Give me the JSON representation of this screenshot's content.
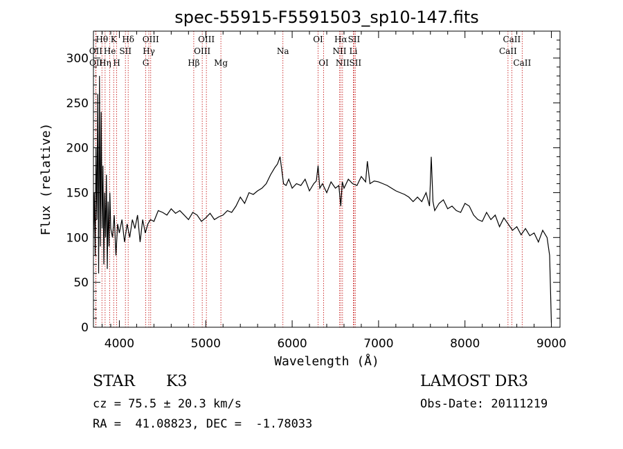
{
  "chart_data": {
    "type": "line",
    "title": "spec-55915-F5591503_sp10-147.fits",
    "xlabel": "Wavelength (Å)",
    "ylabel": "Flux (relative)",
    "xlim": [
      3700,
      9100
    ],
    "ylim": [
      0,
      330
    ],
    "xticks": [
      4000,
      5000,
      6000,
      7000,
      8000,
      9000
    ],
    "yticks": [
      0,
      50,
      100,
      150,
      200,
      250,
      300
    ],
    "series": [
      {
        "name": "flux",
        "x": [
          3700,
          3710,
          3720,
          3730,
          3740,
          3750,
          3760,
          3770,
          3780,
          3790,
          3800,
          3810,
          3820,
          3830,
          3840,
          3850,
          3860,
          3870,
          3880,
          3890,
          3900,
          3920,
          3940,
          3960,
          3980,
          4000,
          4030,
          4060,
          4090,
          4120,
          4150,
          4180,
          4210,
          4240,
          4270,
          4300,
          4330,
          4360,
          4400,
          4450,
          4500,
          4550,
          4600,
          4650,
          4700,
          4750,
          4800,
          4850,
          4900,
          4950,
          5000,
          5050,
          5100,
          5150,
          5200,
          5250,
          5300,
          5350,
          5400,
          5450,
          5500,
          5550,
          5600,
          5650,
          5700,
          5750,
          5800,
          5830,
          5860,
          5880,
          5900,
          5930,
          5960,
          6000,
          6050,
          6100,
          6150,
          6200,
          6250,
          6280,
          6300,
          6320,
          6350,
          6400,
          6450,
          6500,
          6540,
          6563,
          6580,
          6600,
          6650,
          6700,
          6750,
          6800,
          6850,
          6870,
          6900,
          6950,
          7000,
          7050,
          7100,
          7150,
          7200,
          7250,
          7300,
          7350,
          7400,
          7450,
          7500,
          7550,
          7590,
          7610,
          7630,
          7650,
          7700,
          7750,
          7800,
          7850,
          7900,
          7950,
          8000,
          8050,
          8100,
          8150,
          8200,
          8250,
          8300,
          8350,
          8400,
          8450,
          8500,
          8550,
          8600,
          8650,
          8700,
          8750,
          8800,
          8850,
          8900,
          8950,
          8980,
          9000
        ],
        "values": [
          100,
          150,
          80,
          200,
          120,
          260,
          60,
          280,
          90,
          240,
          110,
          180,
          70,
          150,
          100,
          170,
          65,
          140,
          90,
          150,
          110,
          100,
          125,
          80,
          115,
          105,
          120,
          95,
          115,
          100,
          120,
          110,
          125,
          95,
          120,
          105,
          115,
          120,
          118,
          130,
          128,
          125,
          132,
          127,
          130,
          125,
          120,
          128,
          125,
          118,
          122,
          127,
          120,
          123,
          125,
          130,
          128,
          135,
          145,
          138,
          150,
          148,
          152,
          155,
          160,
          170,
          178,
          182,
          190,
          175,
          160,
          158,
          165,
          155,
          160,
          158,
          165,
          152,
          160,
          163,
          180,
          155,
          160,
          150,
          162,
          155,
          158,
          135,
          162,
          155,
          165,
          160,
          158,
          168,
          162,
          185,
          160,
          163,
          162,
          160,
          158,
          155,
          152,
          150,
          148,
          145,
          140,
          145,
          140,
          150,
          135,
          190,
          140,
          130,
          138,
          142,
          132,
          135,
          130,
          128,
          138,
          135,
          125,
          120,
          118,
          128,
          120,
          125,
          112,
          122,
          115,
          108,
          112,
          103,
          110,
          102,
          105,
          95,
          108,
          100,
          80,
          5
        ]
      }
    ],
    "lines": [
      {
        "label": "Hθ",
        "wl": 3798,
        "row": 0
      },
      {
        "label": "OII",
        "wl": 3727,
        "row": 1
      },
      {
        "label": "OII",
        "wl": 3729,
        "row": 2
      },
      {
        "label": "K",
        "wl": 3934,
        "row": 0
      },
      {
        "label": "He",
        "wl": 3889,
        "row": 1
      },
      {
        "label": "Hη",
        "wl": 3835,
        "row": 2
      },
      {
        "label": "H",
        "wl": 3969,
        "row": 2
      },
      {
        "label": "SII",
        "wl": 4070,
        "row": 1
      },
      {
        "label": "Hδ",
        "wl": 4102,
        "row": 0
      },
      {
        "label": "OIII",
        "wl": 4363,
        "row": 0
      },
      {
        "label": "Hγ",
        "wl": 4341,
        "row": 1
      },
      {
        "label": "G",
        "wl": 4305,
        "row": 2
      },
      {
        "label": "Hβ",
        "wl": 4861,
        "row": 2
      },
      {
        "label": "OIII",
        "wl": 5007,
        "row": 0
      },
      {
        "label": "OIII",
        "wl": 4959,
        "row": 1
      },
      {
        "label": "Mg",
        "wl": 5175,
        "row": 2
      },
      {
        "label": "Na",
        "wl": 5893,
        "row": 1
      },
      {
        "label": "OI",
        "wl": 6300,
        "row": 0
      },
      {
        "label": "OI",
        "wl": 6364,
        "row": 2
      },
      {
        "label": "Hα",
        "wl": 6563,
        "row": 0
      },
      {
        "label": "NII",
        "wl": 6548,
        "row": 1
      },
      {
        "label": "NII",
        "wl": 6583,
        "row": 2
      },
      {
        "label": "SII",
        "wl": 6716,
        "row": 0
      },
      {
        "label": "Li",
        "wl": 6708,
        "row": 1
      },
      {
        "label": "SII",
        "wl": 6731,
        "row": 2
      },
      {
        "label": "CaII",
        "wl": 8542,
        "row": 0
      },
      {
        "label": "CaII",
        "wl": 8498,
        "row": 1
      },
      {
        "label": "CaII",
        "wl": 8662,
        "row": 2
      }
    ]
  },
  "info": {
    "class": "STAR",
    "subclass": "K3",
    "survey": "LAMOST DR3",
    "cz": "cz = 75.5 ± 20.3 km/s",
    "obs_date": "Obs-Date: 20111219",
    "radec": "RA =  41.08823, DEC =  -1.78033"
  }
}
